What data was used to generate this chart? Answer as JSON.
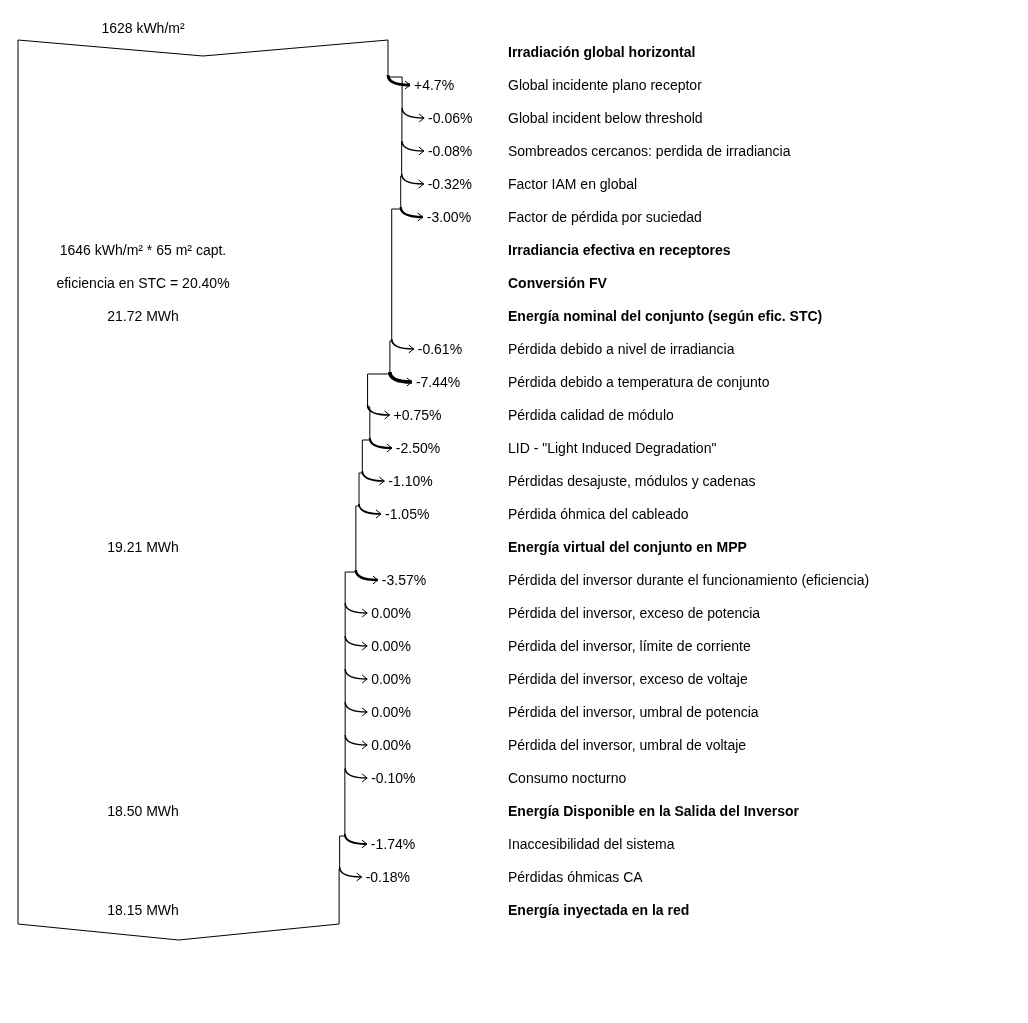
{
  "chart_data": {
    "type": "other",
    "categories": [
      "Irradiación global horizontal",
      "Global incidente plano receptor",
      "Global incident below threshold",
      "Sombreados cercanos: perdida de irradiancia",
      "Factor IAM en global",
      "Factor de pérdida por suciedad",
      "Irradiancia efectiva en receptores",
      "Conversión FV",
      "Energía nominal del conjunto (según efic. STC)",
      "Pérdida debido a nivel de irradiancia",
      "Pérdida debido a temperatura de conjunto",
      "Pérdida calidad de módulo",
      "LID - \"Light Induced Degradation\"",
      "Pérdidas desajuste, módulos y cadenas",
      "Pérdida óhmica del cableado",
      "Energía virtual del conjunto en MPP",
      "Pérdida del inversor durante el funcionamiento (eficiencia)",
      "Pérdida del inversor, exceso de potencia",
      "Pérdida del inversor, límite de corriente",
      "Pérdida del inversor, exceso de voltaje",
      "Pérdida del inversor, umbral de potencia",
      "Pérdida del inversor, umbral de voltaje",
      "Consumo nocturno",
      "Energía Disponible en la Salida del Inversor",
      "Inaccesibilidad del sistema",
      "Pérdidas óhmicas CA",
      "Energía inyectada en la red"
    ],
    "values": [
      null,
      4.7,
      -0.06,
      -0.08,
      -0.32,
      -3.0,
      null,
      null,
      null,
      -0.61,
      -7.44,
      0.75,
      -2.5,
      -1.1,
      -1.05,
      null,
      -3.57,
      0.0,
      0.0,
      0.0,
      0.0,
      0.0,
      -0.1,
      null,
      -1.74,
      -0.18,
      null
    ],
    "value_labels": [
      null,
      "+4.7%",
      "-0.06%",
      "-0.08%",
      "-0.32%",
      "-3.00%",
      null,
      null,
      null,
      "-0.61%",
      "-7.44%",
      "+0.75%",
      "-2.50%",
      "-1.10%",
      "-1.05%",
      null,
      "-3.57%",
      "0.00%",
      "0.00%",
      "0.00%",
      "0.00%",
      "0.00%",
      "-0.10%",
      null,
      "-1.74%",
      "-0.18%",
      null
    ],
    "annotations": [
      {
        "text": "1628 kWh/m²",
        "y": "Irradiación global horizontal"
      },
      {
        "text": "1646 kWh/m² * 65 m² capt.",
        "y": "Irradiancia efectiva en receptores"
      },
      {
        "text": "eficiencia en STC = 20.40%",
        "y": "Conversión FV"
      },
      {
        "text": "21.72 MWh",
        "y": "Energía nominal del conjunto (según efic. STC)"
      },
      {
        "text": "19.21 MWh",
        "y": "Energía virtual del conjunto en MPP"
      },
      {
        "text": "18.50 MWh",
        "y": "Energía Disponible en la Salida del Inversor"
      },
      {
        "text": "18.15 MWh",
        "y": "Energía inyectada en la red"
      }
    ]
  }
}
